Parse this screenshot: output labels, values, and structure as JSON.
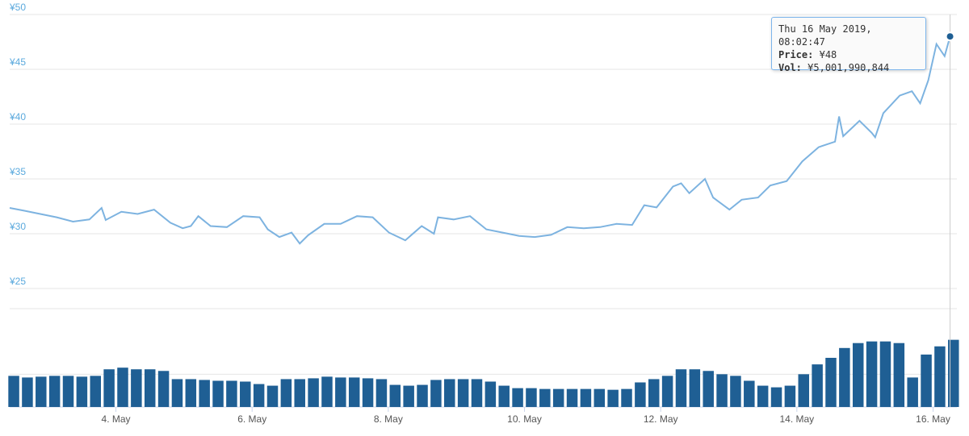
{
  "chart_data": [
    {
      "type": "line",
      "color": "#7db3e0",
      "x": [
        2.44,
        2.65,
        2.89,
        3.13,
        3.37,
        3.61,
        3.79,
        3.85,
        4.08,
        4.32,
        4.56,
        4.8,
        4.98,
        5.1,
        5.21,
        5.39,
        5.63,
        5.87,
        6.11,
        6.23,
        6.4,
        6.58,
        6.7,
        6.82,
        7.06,
        7.3,
        7.54,
        7.77,
        8.01,
        8.25,
        8.49,
        8.67,
        8.73,
        8.96,
        9.2,
        9.44,
        9.68,
        9.92,
        10.15,
        10.39,
        10.63,
        10.87,
        11.11,
        11.35,
        11.58,
        11.76,
        11.94,
        12.18,
        12.3,
        12.42,
        12.65,
        12.77,
        13.01,
        13.19,
        13.43,
        13.61,
        13.85,
        14.08,
        14.32,
        14.56,
        14.62,
        14.68,
        14.92,
        15.1,
        15.15,
        15.27,
        15.51,
        15.69,
        15.81,
        15.93,
        16.05,
        16.17,
        16.25
      ],
      "values": [
        32.35,
        32.1,
        31.8,
        31.5,
        31.1,
        31.3,
        32.35,
        31.25,
        32.0,
        31.8,
        32.2,
        31.0,
        30.5,
        30.7,
        31.6,
        30.7,
        30.6,
        31.6,
        31.5,
        30.4,
        29.7,
        30.1,
        29.1,
        29.85,
        30.9,
        30.9,
        31.6,
        31.5,
        30.1,
        29.4,
        30.7,
        30.0,
        31.5,
        31.3,
        31.6,
        30.4,
        30.1,
        29.8,
        29.7,
        29.9,
        30.6,
        30.5,
        30.6,
        30.9,
        30.8,
        32.6,
        32.4,
        34.3,
        34.6,
        33.7,
        35.0,
        33.3,
        32.2,
        33.1,
        33.3,
        34.4,
        34.8,
        36.6,
        37.9,
        38.4,
        40.7,
        38.9,
        40.3,
        39.2,
        38.8,
        41.0,
        42.6,
        43.0,
        41.9,
        44.0,
        47.3,
        46.2,
        48
      ],
      "xlim": [
        2.44,
        16.35
      ],
      "ylim": [
        25,
        50
      ],
      "yticks": [
        {
          "value": 25,
          "label": "¥25"
        },
        {
          "value": 30,
          "label": "¥30"
        },
        {
          "value": 35,
          "label": "¥35"
        },
        {
          "value": 40,
          "label": "¥40"
        },
        {
          "value": 45,
          "label": "¥45"
        },
        {
          "value": 50,
          "label": "¥50"
        }
      ],
      "grid": true
    },
    {
      "type": "bar",
      "color": "#1f5f94",
      "x": [
        2.5,
        2.7,
        2.9,
        3.1,
        3.3,
        3.5,
        3.7,
        3.9,
        4.1,
        4.3,
        4.5,
        4.7,
        4.9,
        5.1,
        5.3,
        5.5,
        5.7,
        5.9,
        6.1,
        6.3,
        6.5,
        6.7,
        6.9,
        7.1,
        7.3,
        7.5,
        7.7,
        7.9,
        8.1,
        8.3,
        8.5,
        8.7,
        8.9,
        9.1,
        9.3,
        9.5,
        9.7,
        9.9,
        10.1,
        10.3,
        10.5,
        10.7,
        10.9,
        11.1,
        11.3,
        11.5,
        11.7,
        11.9,
        12.1,
        12.3,
        12.5,
        12.7,
        12.9,
        13.1,
        13.3,
        13.5,
        13.7,
        13.9,
        14.1,
        14.3,
        14.5,
        14.7,
        14.9,
        15.1,
        15.3,
        15.5,
        15.7,
        15.9,
        16.1,
        16.3
      ],
      "values": [
        1.9,
        1.8,
        1.85,
        1.9,
        1.9,
        1.85,
        1.9,
        2.3,
        2.4,
        2.3,
        2.3,
        2.2,
        1.7,
        1.7,
        1.65,
        1.6,
        1.6,
        1.55,
        1.4,
        1.3,
        1.7,
        1.7,
        1.75,
        1.85,
        1.8,
        1.8,
        1.75,
        1.7,
        1.35,
        1.3,
        1.35,
        1.65,
        1.7,
        1.7,
        1.7,
        1.55,
        1.3,
        1.15,
        1.15,
        1.1,
        1.1,
        1.1,
        1.1,
        1.1,
        1.05,
        1.1,
        1.5,
        1.7,
        1.9,
        2.3,
        2.3,
        2.2,
        2.0,
        1.9,
        1.6,
        1.3,
        1.2,
        1.3,
        2.0,
        2.6,
        3.0,
        3.6,
        3.9,
        4.0,
        4.0,
        3.9,
        1.8,
        3.2,
        3.7,
        4.1
      ],
      "xlim": [
        2.44,
        16.35
      ],
      "ylim": [
        0,
        6
      ],
      "yticks": [
        2
      ],
      "xticks": [
        {
          "value": 4,
          "label": "4. May"
        },
        {
          "value": 6,
          "label": "6. May"
        },
        {
          "value": 8,
          "label": "8. May"
        },
        {
          "value": 10,
          "label": "10. May"
        },
        {
          "value": 12,
          "label": "12. May"
        },
        {
          "value": 14,
          "label": "14. May"
        },
        {
          "value": 16,
          "label": "16. May"
        }
      ],
      "grid": true
    }
  ],
  "tooltip": {
    "title": "Thu 16 May 2019, 08:02:47",
    "rows": [
      {
        "label": "Price:",
        "value": "¥48"
      },
      {
        "label": "Vol:",
        "value": "¥5,001,990,844"
      }
    ]
  }
}
